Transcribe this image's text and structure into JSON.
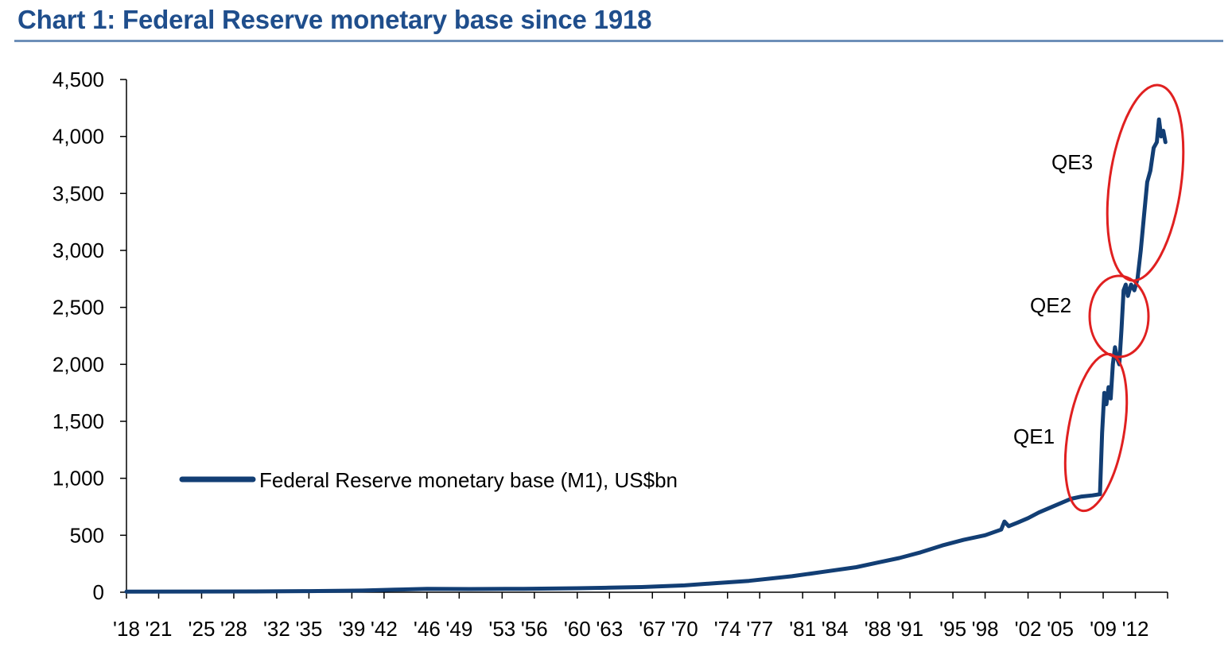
{
  "title": "Chart 1: Federal Reserve monetary base since 1918",
  "colors": {
    "title": "#1f4e8c",
    "series": "#123e74",
    "ellipse": "#e02020",
    "axis": "#000000"
  },
  "chart_data": {
    "type": "line",
    "title": "Chart 1: Federal Reserve monetary base since 1918",
    "xlabel": "",
    "ylabel": "",
    "xlim": [
      1918,
      2015
    ],
    "ylim": [
      0,
      4500
    ],
    "yticks": [
      0,
      500,
      1000,
      1500,
      2000,
      2500,
      3000,
      3500,
      4000,
      4500
    ],
    "ytick_labels": [
      "0",
      "500",
      "1,000",
      "1,500",
      "2,000",
      "2,500",
      "3,000",
      "3,500",
      "4,000",
      "4,500"
    ],
    "xticks": [
      1918,
      1921,
      1925,
      1928,
      1932,
      1935,
      1939,
      1942,
      1946,
      1949,
      1953,
      1956,
      1960,
      1963,
      1967,
      1970,
      1974,
      1977,
      1981,
      1984,
      1988,
      1991,
      1995,
      1998,
      2002,
      2005,
      2009,
      2012
    ],
    "xtick_labels": [
      "'18",
      "'21",
      "'25",
      "'28",
      "'32",
      "'35",
      "'39",
      "'42",
      "'46",
      "'49",
      "'53",
      "'56",
      "'60",
      "'63",
      "'67",
      "'70",
      "'74",
      "'77",
      "'81",
      "'84",
      "'88",
      "'91",
      "'95",
      "'98",
      "'02",
      "'05",
      "'09",
      "'12"
    ],
    "grid": false,
    "legend": "middle-left",
    "series": [
      {
        "name": "Federal Reserve monetary base (M1), US$bn",
        "x": [
          1918,
          1925,
          1930,
          1935,
          1940,
          1943,
          1946,
          1950,
          1955,
          1960,
          1963,
          1966,
          1970,
          1973,
          1976,
          1980,
          1983,
          1986,
          1988,
          1990,
          1992,
          1994,
          1996,
          1998,
          1999.5,
          1999.8,
          2000.2,
          2001,
          2002,
          2003,
          2004,
          2005,
          2006,
          2007,
          2008.0,
          2008.7,
          2008.9,
          2009.1,
          2009.3,
          2009.5,
          2009.7,
          2009.9,
          2010.1,
          2010.3,
          2010.5,
          2010.7,
          2010.9,
          2011.1,
          2011.3,
          2011.6,
          2011.9,
          2012.2,
          2012.5,
          2012.8,
          2013.1,
          2013.4,
          2013.7,
          2014.0,
          2014.2,
          2014.4,
          2014.6,
          2014.8
        ],
        "y": [
          5,
          6,
          7,
          10,
          15,
          22,
          30,
          28,
          30,
          35,
          40,
          45,
          60,
          80,
          100,
          140,
          180,
          220,
          260,
          300,
          350,
          410,
          460,
          500,
          550,
          620,
          580,
          610,
          650,
          700,
          740,
          780,
          820,
          840,
          850,
          860,
          1400,
          1750,
          1650,
          1800,
          1700,
          2000,
          2150,
          2050,
          2000,
          2300,
          2650,
          2700,
          2600,
          2700,
          2650,
          2750,
          3000,
          3300,
          3600,
          3700,
          3900,
          3950,
          4150,
          4000,
          4050,
          3950
        ]
      }
    ],
    "annotations": [
      "QE1",
      "QE2",
      "QE3"
    ]
  }
}
